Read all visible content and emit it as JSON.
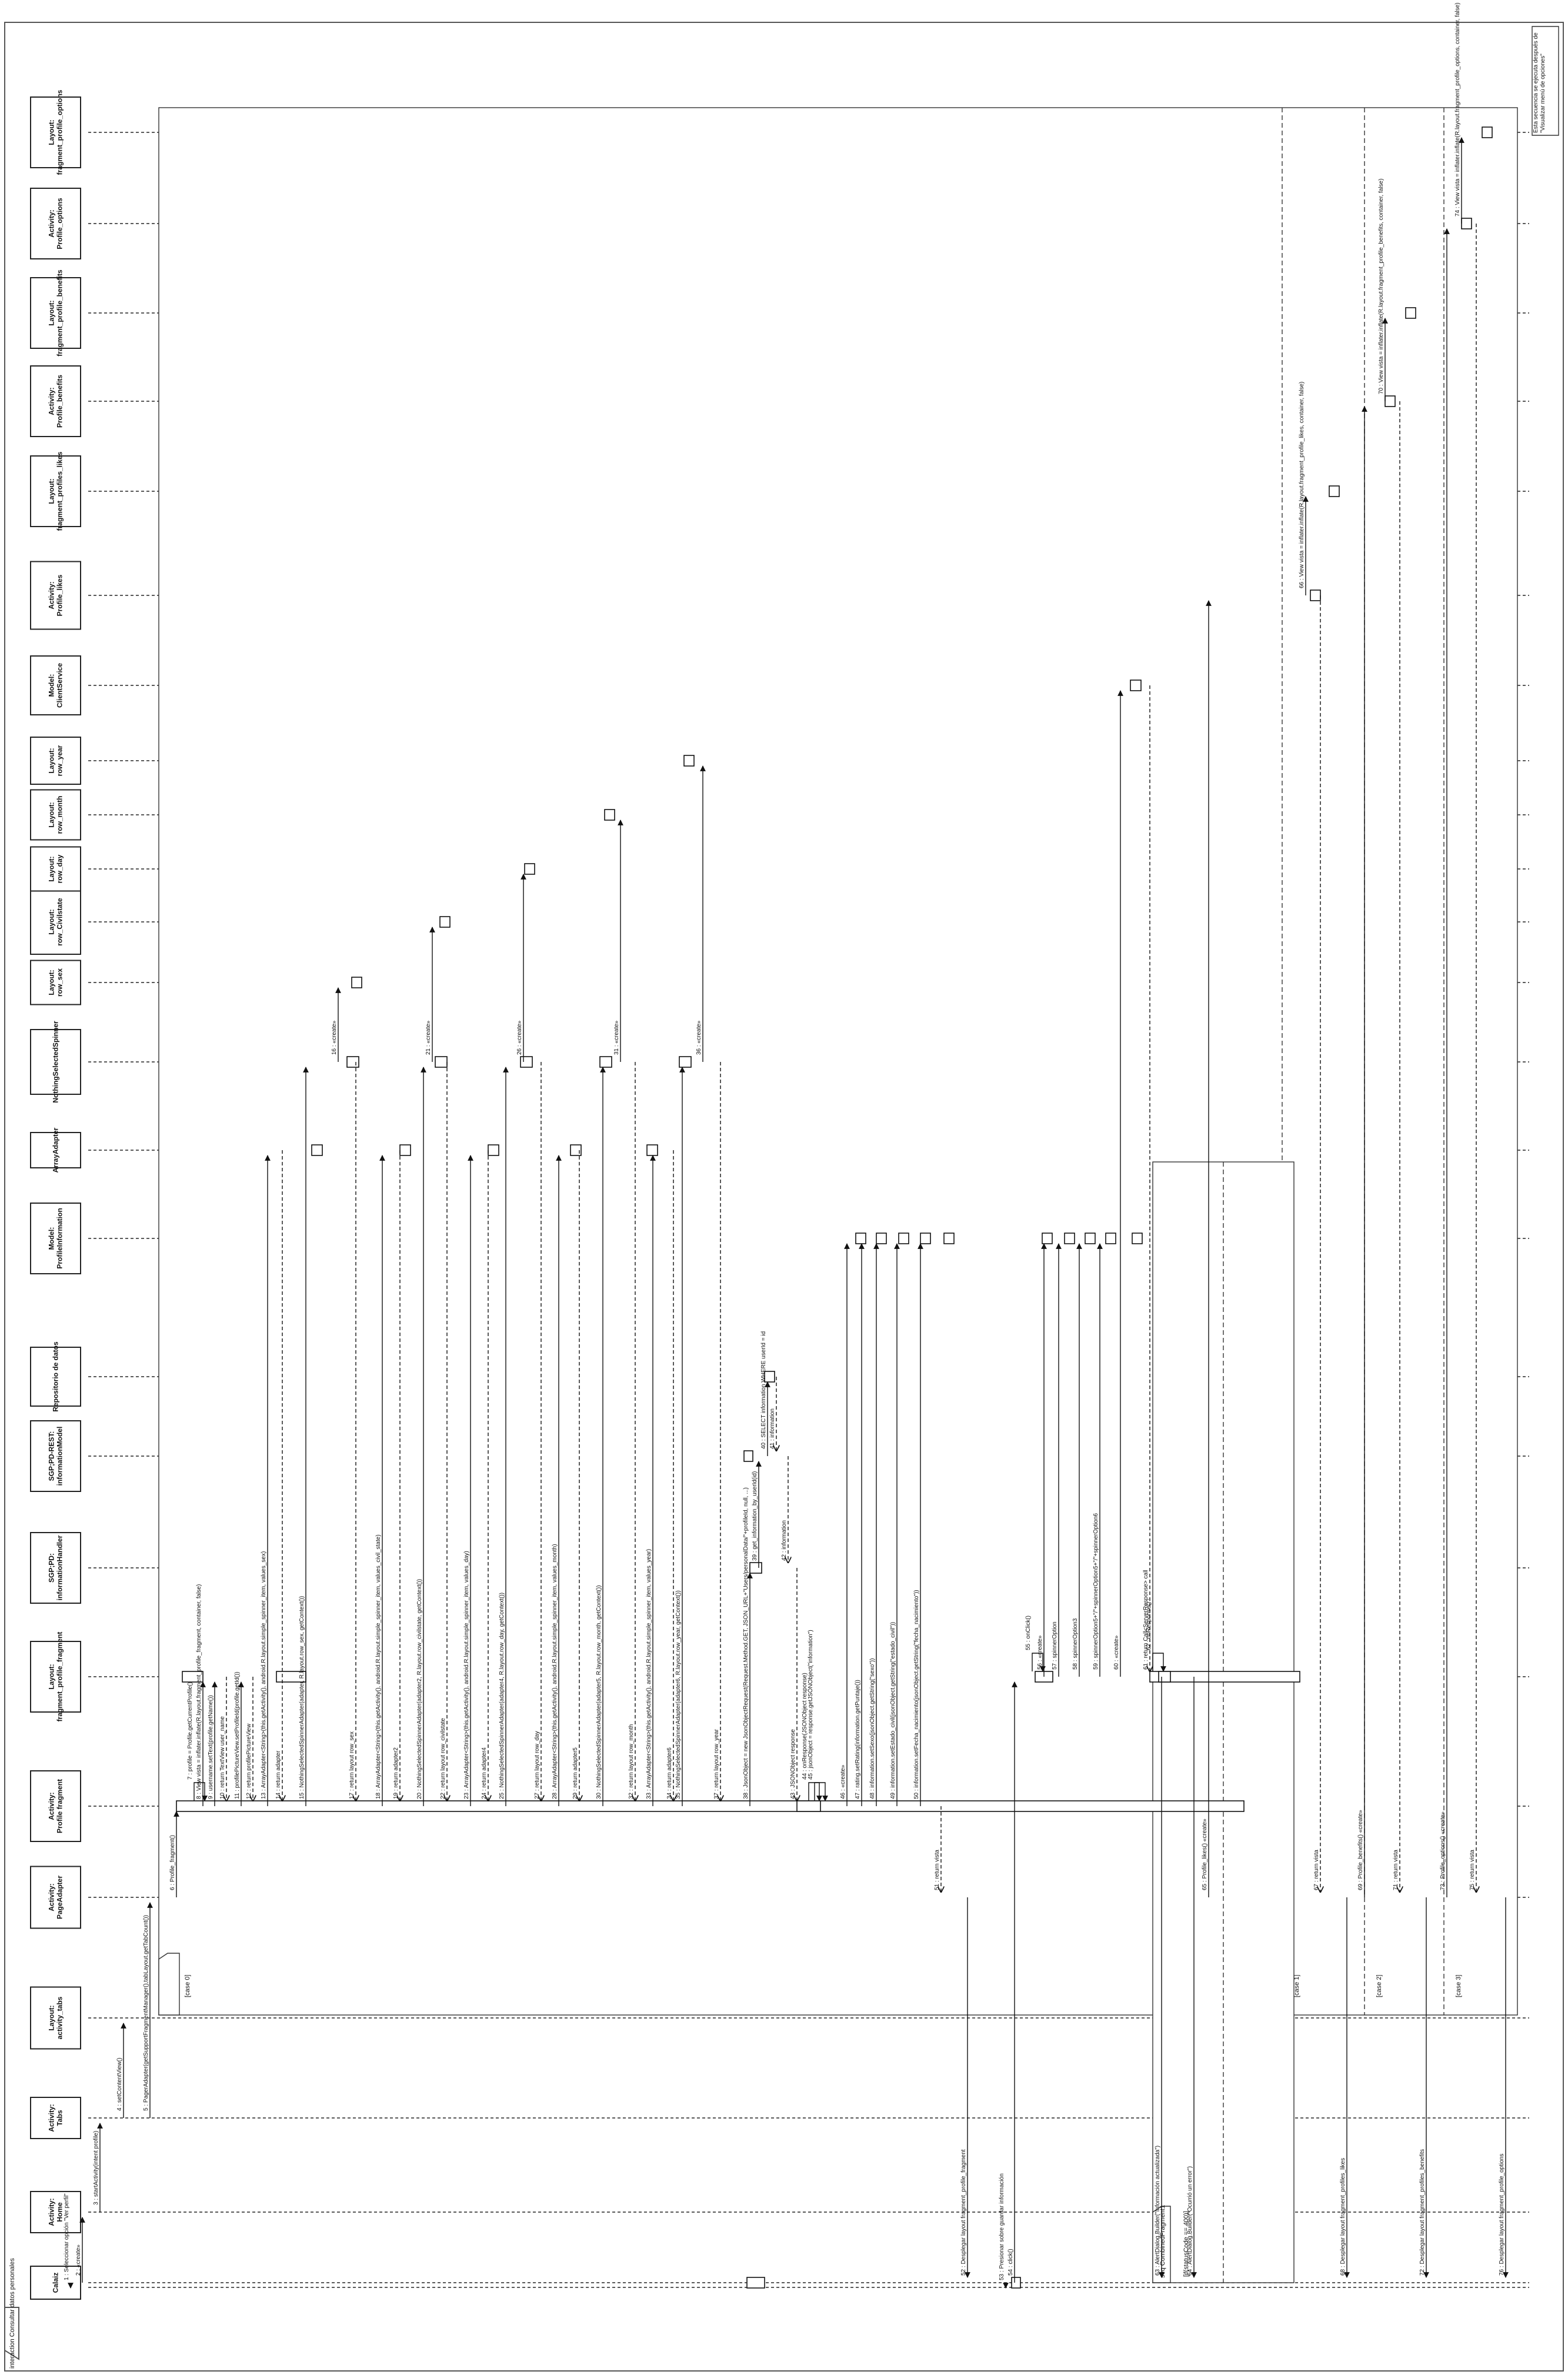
{
  "diagram": {
    "frame_label": "interaction Consultar datos personales",
    "note": "Esta secuencia se ejecuta después de \"Visualizar menú de opciones\"",
    "lifelines": [
      {
        "id": "cliente",
        "name": "Cliente",
        "actor": true
      },
      {
        "id": "calaiz",
        "name": "Calaiz"
      },
      {
        "id": "home",
        "name": "Activity: Home"
      },
      {
        "id": "tabs",
        "name": "Activity: Tabs"
      },
      {
        "id": "ltabs",
        "name": "Layout: activity_tabs"
      },
      {
        "id": "pager",
        "name": "Activity: PageAdapter"
      },
      {
        "id": "pfrag",
        "name": "Activity: Profile fragment"
      },
      {
        "id": "lpfrag",
        "name": "Layout: fragment_profile_fragment"
      },
      {
        "id": "handler",
        "name": "SGP;PD: informationHandler"
      },
      {
        "id": "rest",
        "name": "SGP;PD-REST:informationModel"
      },
      {
        "id": "repo",
        "name": "Repositorio de datos"
      },
      {
        "id": "pinfo",
        "name": "Model: ProfileInformation"
      },
      {
        "id": "adapter",
        "name": "ArrayAdapter"
      },
      {
        "id": "spinner",
        "name": "NothingSelectedSpinner"
      },
      {
        "id": "rsex",
        "name": "Layout: row_sex"
      },
      {
        "id": "rcivil",
        "name": "Layout: row_Civilstate"
      },
      {
        "id": "rday",
        "name": "Layout: row_day"
      },
      {
        "id": "rmonth",
        "name": "Layout: row_month"
      },
      {
        "id": "ryear",
        "name": "Layout: row_year"
      },
      {
        "id": "client",
        "name": "Model: ClientService"
      },
      {
        "id": "plikes",
        "name": "Activity: Profile_likes"
      },
      {
        "id": "lplikes",
        "name": "Layout: fragment_profiles_likes"
      },
      {
        "id": "pbenef",
        "name": "Activity: Profile_benefits"
      },
      {
        "id": "lpbenef",
        "name": "Layout: fragment_profile_benefits"
      },
      {
        "id": "popt",
        "name": "Activity: Profile_options"
      },
      {
        "id": "lpopt",
        "name": "Layout: fragment_profile_options"
      }
    ],
    "messages": [
      {
        "from": "cliente",
        "to": "calaiz",
        "label": "1 : Seleccionar opción \"Ver perfil\""
      },
      {
        "from": "calaiz",
        "to": "home",
        "label": "2 : «create»"
      },
      {
        "from": "home",
        "to": "tabs",
        "label": "3 : startActivity(intent profile)"
      },
      {
        "from": "tabs",
        "to": "ltabs",
        "label": "4 : setContentView()"
      },
      {
        "from": "tabs",
        "to": "pager",
        "label": "5 : PagerAdapter(getSupportFragmentManager(),tabLayout.getTabCount())"
      },
      {
        "from": "pager",
        "to": "pfrag",
        "label": "6 : Profile_fragment()"
      },
      {
        "from": "pfrag",
        "to": "pfrag",
        "label": "7 : profile = Profile.getCurrentProfile()"
      },
      {
        "from": "pfrag",
        "to": "lpfrag",
        "label": "8 : View vista = inflater.inflate(R.layout.fragment_profile_fragment, container, false)"
      },
      {
        "from": "pfrag",
        "to": "lpfrag",
        "label": "9 : username.setText(profile.getName())"
      },
      {
        "from": "lpfrag",
        "to": "pfrag",
        "label": "10 : return TextView user_name"
      },
      {
        "from": "pfrag",
        "to": "lpfrag",
        "label": "11 : profilePictureView.setProfileId(profile.getId())"
      },
      {
        "from": "lpfrag",
        "to": "pfrag",
        "label": "12 : return profilePictureView"
      },
      {
        "from": "pfrag",
        "to": "adapter",
        "label": "13 : ArrayAdapter<String>(this.getActivity(), android.R.layout.simple_spinner_item, values_sex)"
      },
      {
        "from": "adapter",
        "to": "pfrag",
        "label": "14 : return adapter"
      },
      {
        "from": "pfrag",
        "to": "spinner",
        "label": "15 : NothingSelectedSpinnerAdapter(adapter, R.layout.row_sex, getContext())"
      },
      {
        "from": "spinner",
        "to": "rsex",
        "label": "16 : «create»"
      },
      {
        "from": "spinner",
        "to": "pfrag",
        "label": "17 : return layout row_sex"
      },
      {
        "from": "pfrag",
        "to": "adapter",
        "label": "18 : ArrayAdapter<String>(this.getActivity(), android.R.layout.simple_spinner_item, values_civil_state)"
      },
      {
        "from": "adapter",
        "to": "pfrag",
        "label": "19 : return adapter2"
      },
      {
        "from": "pfrag",
        "to": "spinner",
        "label": "20 : NothingSelectedSpinnerAdapter(adapter2, R.layout.row_civilstate, getContext())"
      },
      {
        "from": "spinner",
        "to": "rcivil",
        "label": "21 : «create»"
      },
      {
        "from": "spinner",
        "to": "pfrag",
        "label": "22 : return layout row_civilstate"
      },
      {
        "from": "pfrag",
        "to": "adapter",
        "label": "23 : ArrayAdapter<String>(this.getActivity(), android.R.layout.simple_spinner_item, values_day)"
      },
      {
        "from": "adapter",
        "to": "pfrag",
        "label": "24 : return adapter4"
      },
      {
        "from": "pfrag",
        "to": "spinner",
        "label": "25 : NothingSelectedSpinnerAdapter(adapter4, R.layout.row_day, getContext())"
      },
      {
        "from": "spinner",
        "to": "rday",
        "label": "26 : «create»"
      },
      {
        "from": "spinner",
        "to": "pfrag",
        "label": "27 : return layout row_day"
      },
      {
        "from": "pfrag",
        "to": "adapter",
        "label": "28 : ArrayAdapter<String>(this.getActivity(), android.R.layout.simple_spinner_item, values_month)"
      },
      {
        "from": "adapter",
        "to": "pfrag",
        "label": "29 : return adapter5"
      },
      {
        "from": "pfrag",
        "to": "spinner",
        "label": "30 : NothingSelectedSpinnerAdapter(adapter5, R.layout.row_month, getContext())"
      },
      {
        "from": "spinner",
        "to": "rmonth",
        "label": "31 : «create»"
      },
      {
        "from": "spinner",
        "to": "pfrag",
        "label": "32 : return layout row_month"
      },
      {
        "from": "pfrag",
        "to": "adapter",
        "label": "33 : ArrayAdapter<String>(this.getActivity(), android.R.layout.simple_spinner_item, values_year)"
      },
      {
        "from": "adapter",
        "to": "pfrag",
        "label": "34 : return adapter6"
      },
      {
        "from": "pfrag",
        "to": "spinner",
        "label": "35 : NothingSelectedSpinnerAdapter(adapter6, R.layout.row_year, getContext())"
      },
      {
        "from": "spinner",
        "to": "ryear",
        "label": "36 : «create»"
      },
      {
        "from": "spinner",
        "to": "pfrag",
        "label": "37 : return layout row_year"
      },
      {
        "from": "pfrag",
        "to": "handler",
        "label": "38 : JsonObject = new JsonObjectRequest(Request.Method.GET, JSON_URL+\"Users/personalData/\"+profileId, null, ...)"
      },
      {
        "from": "handler",
        "to": "rest",
        "label": "39 : get_information_by_userId(id)"
      },
      {
        "from": "rest",
        "to": "repo",
        "label": "40 : SELECT information WHERE userId = id"
      },
      {
        "from": "repo",
        "to": "rest",
        "label": "41 : information"
      },
      {
        "from": "rest",
        "to": "handler",
        "label": "42 : information"
      },
      {
        "from": "handler",
        "to": "pfrag",
        "label": "43 : JSONObject response"
      },
      {
        "from": "pfrag",
        "to": "pfrag",
        "label": "44 : onResponse(JSONObject response)"
      },
      {
        "from": "pfrag",
        "to": "pfrag",
        "label": "45 : jsonObject = response.getJSONObject(\"information\")"
      },
      {
        "from": "pfrag",
        "to": "pinfo",
        "label": "46 : «create»"
      },
      {
        "from": "pfrag",
        "to": "pinfo",
        "label": "47 : rating.setRating(information.getPuntaje())"
      },
      {
        "from": "pfrag",
        "to": "pinfo",
        "label": "48 : information.setSexo(jsonObject.getString(\"sexo\"))"
      },
      {
        "from": "pfrag",
        "to": "pinfo",
        "label": "49 : information.setEstado_civil(jsonObject.getString(\"estado_civil\"))"
      },
      {
        "from": "pfrag",
        "to": "pinfo",
        "label": "50 : information.setFecha_nacimiento(jsonObject.getString(\"fecha_nacimiento\"))"
      },
      {
        "from": "pfrag",
        "to": "pager",
        "label": "51 : return vista"
      },
      {
        "from": "pager",
        "to": "calaiz",
        "label": "52 : Desplegar layout fragment_profile_fragment"
      },
      {
        "from": "cliente",
        "to": "calaiz",
        "label": "53 : Presionar sobre guardar información"
      },
      {
        "from": "calaiz",
        "to": "lpfrag",
        "label": "54 : click()"
      },
      {
        "from": "lpfrag",
        "to": "lpfrag",
        "label": "55 : onClick()"
      },
      {
        "from": "lpfrag",
        "to": "pinfo",
        "label": "56 : «create»"
      },
      {
        "from": "lpfrag",
        "to": "pinfo",
        "label": "57 : spinnerOption"
      },
      {
        "from": "lpfrag",
        "to": "pinfo",
        "label": "58 : spinnerOption3"
      },
      {
        "from": "lpfrag",
        "to": "pinfo",
        "label": "59 : spinnerOption5+\"/\"+spinnerOption5+\"/\"+spinnerOption6"
      },
      {
        "from": "lpfrag",
        "to": "client",
        "label": "60 : «create»"
      },
      {
        "from": "client",
        "to": "lpfrag",
        "label": "61 : return Call<ServerResponse> call"
      },
      {
        "from": "lpfrag",
        "to": "lpfrag",
        "label": "62 : onResponse()"
      },
      {
        "from": "lpfrag",
        "to": "calaiz",
        "label": "63 : AlertDialog.Builder(\"Información actualizada\")"
      },
      {
        "from": "lpfrag",
        "to": "calaiz",
        "label": "64 : AlertDialog.Builder(\"Ocurrió un error\")"
      },
      {
        "from": "pager",
        "to": "plikes",
        "label": "65 : Profile_likes() «create»"
      },
      {
        "from": "plikes",
        "to": "lplikes",
        "label": "66 : View vista = inflater.inflate(R.layout.fragment_profile_likes, container, false)"
      },
      {
        "from": "plikes",
        "to": "pager",
        "label": "67 : return vista"
      },
      {
        "from": "pager",
        "to": "calaiz",
        "label": "68 : Desplegar layout fragment_profiles_likes"
      },
      {
        "from": "pager",
        "to": "pbenef",
        "label": "69 : Profile_benefits() «create»"
      },
      {
        "from": "pbenef",
        "to": "lpbenef",
        "label": "70 : View vista = inflater.inflate(R.layout.fragment_profile_benefits, container, false)"
      },
      {
        "from": "pbenef",
        "to": "pager",
        "label": "71 : return vista"
      },
      {
        "from": "pager",
        "to": "calaiz",
        "label": "72 : Desplegar layout fragment_profiles_benefits"
      },
      {
        "from": "pager",
        "to": "popt",
        "label": "73 : Profile_options() «create»"
      },
      {
        "from": "popt",
        "to": "lpopt",
        "label": "74 : View vista = inflater.inflate(R.layout.fragment_profile_options, container, false)"
      },
      {
        "from": "popt",
        "to": "pager",
        "label": "75 : return vista"
      },
      {
        "from": "pager",
        "to": "calaiz",
        "label": "76 : Desplegar layout fragment_profile_options"
      }
    ],
    "fragments": {
      "switch": {
        "label": "seq switch(position)",
        "cases": [
          "[case 0]",
          "[case 1]",
          "[case 2]",
          "[case 3]"
        ]
      },
      "combined": {
        "label": "seq CombinedFragment1",
        "guards": [
          "[if(statusCode == 400)]"
        ]
      }
    }
  }
}
